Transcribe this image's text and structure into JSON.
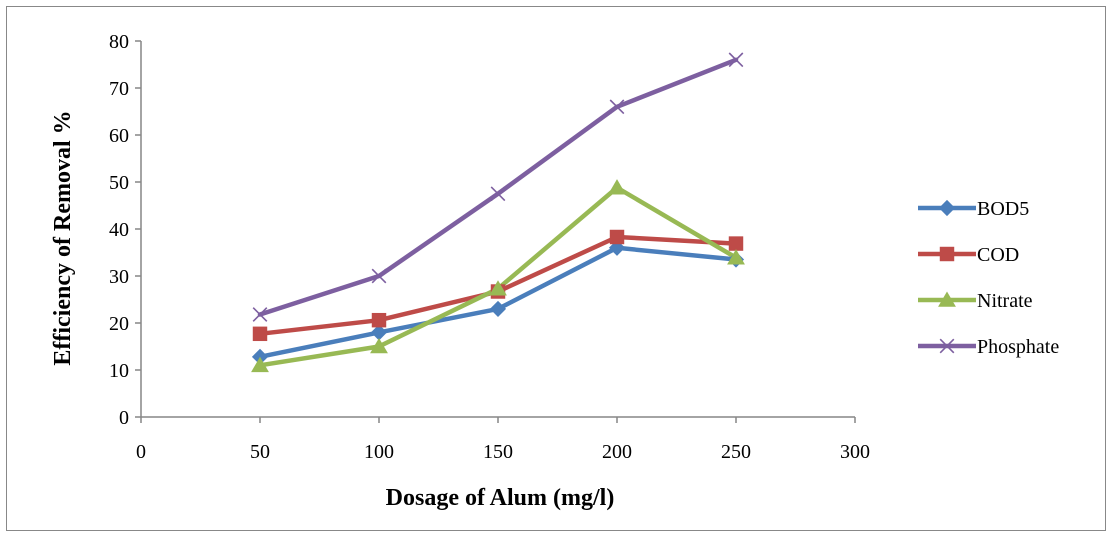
{
  "chart_data": {
    "type": "line",
    "xlabel": "Dosage of Alum (mg/l)",
    "ylabel": "Efficiency of Removal %",
    "xlim": [
      0,
      300
    ],
    "ylim": [
      0,
      80
    ],
    "xticks": [
      0,
      50,
      100,
      150,
      200,
      250,
      300
    ],
    "yticks": [
      0,
      10,
      20,
      30,
      40,
      50,
      60,
      70,
      80
    ],
    "x": [
      50,
      100,
      150,
      200,
      250
    ],
    "grid": false,
    "legend_position": "right",
    "series": [
      {
        "name": "BOD5",
        "color": "#4A7EBB",
        "marker": "diamond",
        "values": [
          12.8,
          18.0,
          23.0,
          36.0,
          33.5
        ]
      },
      {
        "name": "COD",
        "color": "#BE4B48",
        "marker": "square",
        "values": [
          17.7,
          20.6,
          26.7,
          38.3,
          36.9
        ]
      },
      {
        "name": "Nitrate",
        "color": "#98B954",
        "marker": "triangle",
        "values": [
          11.0,
          15.0,
          27.3,
          48.8,
          33.9
        ]
      },
      {
        "name": "Phosphate",
        "color": "#7D5FA0",
        "marker": "x",
        "values": [
          21.8,
          30.0,
          47.5,
          66.0,
          76.0
        ]
      }
    ]
  }
}
